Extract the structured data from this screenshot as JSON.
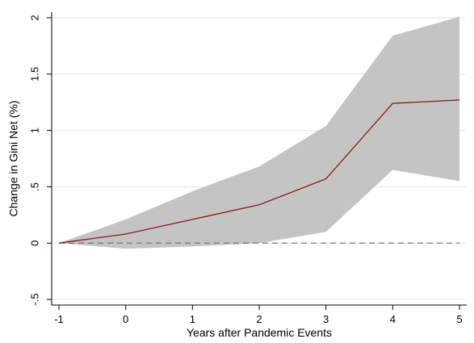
{
  "chart_data": {
    "type": "line",
    "xlabel": "Years after Pandemic Events",
    "ylabel": "Change in Gini Net (%)",
    "x": [
      -1,
      0,
      1,
      2,
      3,
      4,
      5
    ],
    "x_tick_labels": [
      "-1",
      "0",
      "1",
      "2",
      "3",
      "4",
      "5"
    ],
    "y_ticks": [
      -0.5,
      0,
      0.5,
      1,
      1.5,
      2
    ],
    "y_tick_labels": [
      "-.5",
      "0",
      ".5",
      "1",
      "1.5",
      "2"
    ],
    "xlim": [
      -1,
      5
    ],
    "ylim": [
      -0.55,
      2.05
    ],
    "series": [
      {
        "values": [
          0,
          0.08,
          0.21,
          0.34,
          0.57,
          1.24,
          1.27
        ],
        "lower": [
          0,
          -0.05,
          -0.03,
          0.0,
          0.1,
          0.65,
          0.55
        ],
        "upper": [
          0,
          0.21,
          0.46,
          0.68,
          1.04,
          1.84,
          2.01
        ],
        "color": "#8b1a1a",
        "band_color": "#c4c4c4"
      }
    ],
    "reference_line": {
      "y": 0,
      "style": "dashed",
      "color": "#6b6b6b"
    },
    "grid": "horizontal",
    "legend": "none"
  }
}
